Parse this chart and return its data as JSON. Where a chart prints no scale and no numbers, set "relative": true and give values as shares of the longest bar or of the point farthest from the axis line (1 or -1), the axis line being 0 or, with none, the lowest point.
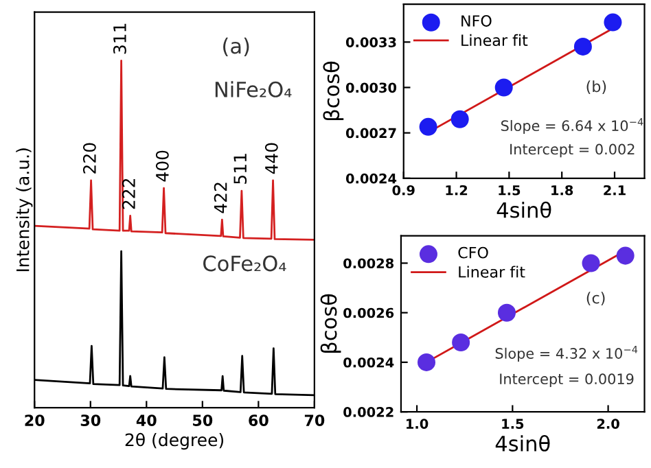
{
  "chart_data": [
    {
      "type": "line",
      "relative": true,
      "xlabel": "2θ (degree)",
      "ylabel": "Intensity (a.u.)",
      "xlim": [
        20,
        70
      ],
      "xticks": [
        20,
        30,
        40,
        50,
        60,
        70
      ],
      "tick_labels": "x",
      "grid": false,
      "legend": false,
      "series": [
        {
          "color": "#d42020",
          "x": [
            20,
            29.8,
            30.1,
            30.4,
            35.2,
            35.5,
            35.8,
            36.9,
            37.1,
            37.3,
            42.8,
            43.1,
            43.4,
            53.3,
            53.5,
            53.7,
            56.7,
            57.0,
            57.3,
            62.3,
            62.6,
            62.9,
            70
          ],
          "values": [
            0.524,
            0.516,
            0.655,
            0.514,
            0.51,
            1.0,
            0.51,
            0.51,
            0.553,
            0.508,
            0.505,
            0.633,
            0.503,
            0.495,
            0.542,
            0.494,
            0.49,
            0.625,
            0.489,
            0.487,
            0.655,
            0.486,
            0.484
          ]
        },
        {
          "color": "#000000",
          "x": [
            20,
            29.9,
            30.2,
            30.5,
            35.2,
            35.5,
            35.8,
            36.9,
            37.1,
            37.3,
            42.9,
            43.2,
            43.5,
            53.4,
            53.6,
            53.8,
            56.8,
            57.1,
            57.4,
            62.4,
            62.7,
            63.0,
            70
          ],
          "values": [
            0.08,
            0.07,
            0.178,
            0.068,
            0.065,
            0.451,
            0.064,
            0.062,
            0.091,
            0.061,
            0.055,
            0.145,
            0.054,
            0.05,
            0.091,
            0.049,
            0.045,
            0.149,
            0.044,
            0.04,
            0.171,
            0.039,
            0.036
          ]
        }
      ],
      "annotations": [
        {
          "text": "220",
          "x": 30.1,
          "y": 0.655
        },
        {
          "text": "311",
          "x": 35.5,
          "y": 1.0
        },
        {
          "text": "222",
          "x": 37.1,
          "y": 0.553
        },
        {
          "text": "400",
          "x": 43.1,
          "y": 0.633
        },
        {
          "text": "422",
          "x": 53.5,
          "y": 0.542
        },
        {
          "text": "511",
          "x": 57.0,
          "y": 0.625
        },
        {
          "text": "440",
          "x": 62.6,
          "y": 0.655
        },
        "(a)",
        "NiFe₂O₄",
        "CoFe₂O₄"
      ]
    },
    {
      "type": "scatter",
      "xlabel": "4sinθ",
      "ylabel": "βcosθ",
      "xlim": [
        0.9,
        2.27
      ],
      "xticks": [
        0.9,
        1.2,
        1.5,
        1.8,
        2.1
      ],
      "ylim": [
        0.0024,
        0.00355
      ],
      "yticks": [
        {
          "value": 0.0024,
          "label": "0.0024"
        },
        {
          "value": 0.0027,
          "label": "0.0027"
        },
        {
          "value": 0.003,
          "label": "0.0030"
        },
        {
          "value": 0.0033,
          "label": "0.0033"
        }
      ],
      "legend": "top left",
      "grid": false,
      "series": [
        {
          "name": "NFO",
          "type": "scatter",
          "marker": "circle",
          "color": "#1c1cf0",
          "x": [
            1.04,
            1.22,
            1.47,
            1.92,
            2.09
          ],
          "values": [
            0.00274,
            0.00279,
            0.003,
            0.00327,
            0.00343
          ]
        },
        {
          "name": "Linear fit",
          "type": "line",
          "color": "#d01818",
          "x": [
            1.05,
            2.09
          ],
          "values": [
            0.00271,
            0.00339
          ]
        }
      ],
      "annotations": [
        "(b)",
        "Slope = 6.64 x 10$^{−4}$",
        "Intercept = 0.002"
      ]
    },
    {
      "type": "scatter",
      "xlabel": "4sinθ",
      "ylabel": "βcosθ",
      "xlim": [
        0.917,
        2.19
      ],
      "xticks": [
        {
          "value": 1.0,
          "label": "1.0"
        },
        1.5,
        {
          "value": 2.0,
          "label": "2.0"
        }
      ],
      "ylim": [
        0.0022,
        0.00291
      ],
      "yticks": [
        0.0022,
        0.0024,
        0.0026,
        0.0028
      ],
      "legend": "top left",
      "grid": false,
      "series": [
        {
          "name": "CFO",
          "type": "scatter",
          "marker": "circle",
          "color": "#5a2ee0",
          "x": [
            1.05,
            1.23,
            1.47,
            1.91,
            2.09
          ],
          "values": [
            0.0024,
            0.00248,
            0.0026,
            0.0028,
            0.00283
          ]
        },
        {
          "name": "Linear fit",
          "type": "line",
          "color": "#d01818",
          "x": [
            1.05,
            2.09
          ],
          "values": [
            0.0024,
            0.00285
          ]
        }
      ],
      "annotations": [
        "(c)",
        "Slope = 4.32 x 10$^{−4}$",
        "Intercept = 0.0019"
      ]
    }
  ]
}
